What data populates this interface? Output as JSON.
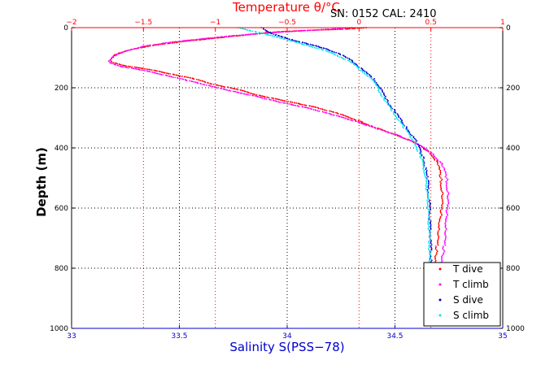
{
  "header": {
    "serial_text": "SN: 0152  CAL: 2410"
  },
  "chart_data": {
    "type": "scatter",
    "top_axis": {
      "label": "Temperature θ/°C",
      "range": [
        -2,
        1
      ],
      "ticks": [
        "-2",
        "-1.5",
        "-1",
        "-0.5",
        "0",
        "0.5",
        "1"
      ],
      "color": "#ff0000"
    },
    "bottom_axis": {
      "label": "Salinity S(PSS−78)",
      "range": [
        33,
        35
      ],
      "ticks": [
        "33",
        "33.5",
        "34",
        "34.5",
        "35"
      ],
      "color": "#0000cc"
    },
    "y_axis": {
      "label": "Depth (m)",
      "range": [
        0,
        1000
      ],
      "reversed": true,
      "ticks": [
        "0",
        "200",
        "400",
        "600",
        "800",
        "1000"
      ]
    },
    "grid": "dotted",
    "legend_position": "bottom-right",
    "series": [
      {
        "name": "T dive",
        "axis": "temperature",
        "color": "#ff0000",
        "points": [
          [
            0.05,
            0
          ],
          [
            -0.1,
            5
          ],
          [
            -0.4,
            10
          ],
          [
            -0.6,
            15
          ],
          [
            -0.8,
            25
          ],
          [
            -1.2,
            45
          ],
          [
            -1.45,
            60
          ],
          [
            -1.6,
            75
          ],
          [
            -1.7,
            90
          ],
          [
            -1.73,
            105
          ],
          [
            -1.72,
            115
          ],
          [
            -1.65,
            125
          ],
          [
            -1.45,
            140
          ],
          [
            -1.3,
            155
          ],
          [
            -1.15,
            170
          ],
          [
            -1.0,
            190
          ],
          [
            -0.85,
            205
          ],
          [
            -0.7,
            225
          ],
          [
            -0.5,
            245
          ],
          [
            -0.3,
            265
          ],
          [
            -0.15,
            285
          ],
          [
            0.0,
            310
          ],
          [
            0.1,
            330
          ],
          [
            0.25,
            355
          ],
          [
            0.38,
            380
          ],
          [
            0.48,
            410
          ],
          [
            0.55,
            450
          ],
          [
            0.57,
            500
          ],
          [
            0.58,
            560
          ],
          [
            0.57,
            620
          ],
          [
            0.55,
            680
          ],
          [
            0.54,
            740
          ],
          [
            0.53,
            800
          ],
          [
            0.52,
            850
          ],
          [
            0.51,
            900
          ],
          [
            0.5,
            950
          ],
          [
            0.5,
            990
          ]
        ]
      },
      {
        "name": "T climb",
        "axis": "temperature",
        "color": "#ff00ff",
        "points": [
          [
            -0.05,
            0
          ],
          [
            -0.2,
            5
          ],
          [
            -0.45,
            12
          ],
          [
            -0.7,
            20
          ],
          [
            -0.95,
            30
          ],
          [
            -1.3,
            48
          ],
          [
            -1.5,
            62
          ],
          [
            -1.62,
            78
          ],
          [
            -1.71,
            95
          ],
          [
            -1.74,
            108
          ],
          [
            -1.73,
            118
          ],
          [
            -1.67,
            128
          ],
          [
            -1.5,
            142
          ],
          [
            -1.35,
            158
          ],
          [
            -1.2,
            175
          ],
          [
            -1.05,
            192
          ],
          [
            -0.9,
            210
          ],
          [
            -0.72,
            228
          ],
          [
            -0.55,
            248
          ],
          [
            -0.35,
            268
          ],
          [
            -0.18,
            290
          ],
          [
            -0.02,
            312
          ],
          [
            0.12,
            335
          ],
          [
            0.27,
            358
          ],
          [
            0.4,
            385
          ],
          [
            0.5,
            415
          ],
          [
            0.58,
            455
          ],
          [
            0.61,
            500
          ],
          [
            0.62,
            560
          ],
          [
            0.61,
            620
          ],
          [
            0.6,
            680
          ],
          [
            0.59,
            740
          ],
          [
            0.57,
            800
          ],
          [
            0.56,
            850
          ],
          [
            0.55,
            900
          ],
          [
            0.54,
            950
          ],
          [
            0.53,
            990
          ]
        ]
      },
      {
        "name": "S dive",
        "axis": "salinity",
        "color": "#0000cc",
        "points": [
          [
            33.88,
            0
          ],
          [
            33.9,
            10
          ],
          [
            33.95,
            25
          ],
          [
            34.02,
            40
          ],
          [
            34.1,
            55
          ],
          [
            34.18,
            70
          ],
          [
            34.25,
            90
          ],
          [
            34.3,
            110
          ],
          [
            34.35,
            140
          ],
          [
            34.4,
            170
          ],
          [
            34.43,
            200
          ],
          [
            34.46,
            240
          ],
          [
            34.5,
            280
          ],
          [
            34.55,
            330
          ],
          [
            34.6,
            380
          ],
          [
            34.63,
            430
          ],
          [
            34.65,
            500
          ],
          [
            34.66,
            600
          ],
          [
            34.665,
            700
          ],
          [
            34.667,
            800
          ],
          [
            34.668,
            900
          ],
          [
            34.67,
            990
          ]
        ]
      },
      {
        "name": "S climb",
        "axis": "salinity",
        "color": "#00e5ee",
        "points": [
          [
            33.77,
            0
          ],
          [
            33.8,
            5
          ],
          [
            33.86,
            15
          ],
          [
            33.95,
            30
          ],
          [
            34.02,
            45
          ],
          [
            34.1,
            60
          ],
          [
            34.17,
            75
          ],
          [
            34.23,
            92
          ],
          [
            34.29,
            112
          ],
          [
            34.34,
            140
          ],
          [
            34.39,
            170
          ],
          [
            34.42,
            200
          ],
          [
            34.45,
            240
          ],
          [
            34.49,
            280
          ],
          [
            34.54,
            330
          ],
          [
            34.59,
            380
          ],
          [
            34.62,
            430
          ],
          [
            34.645,
            500
          ],
          [
            34.655,
            600
          ],
          [
            34.66,
            700
          ],
          [
            34.662,
            800
          ],
          [
            34.665,
            900
          ],
          [
            34.667,
            990
          ]
        ]
      }
    ]
  },
  "legend": {
    "items": [
      {
        "label": "T dive",
        "color": "#ff0000"
      },
      {
        "label": "T climb",
        "color": "#ff00ff"
      },
      {
        "label": "S dive",
        "color": "#0000cc"
      },
      {
        "label": "S climb",
        "color": "#00e5ee"
      }
    ]
  }
}
